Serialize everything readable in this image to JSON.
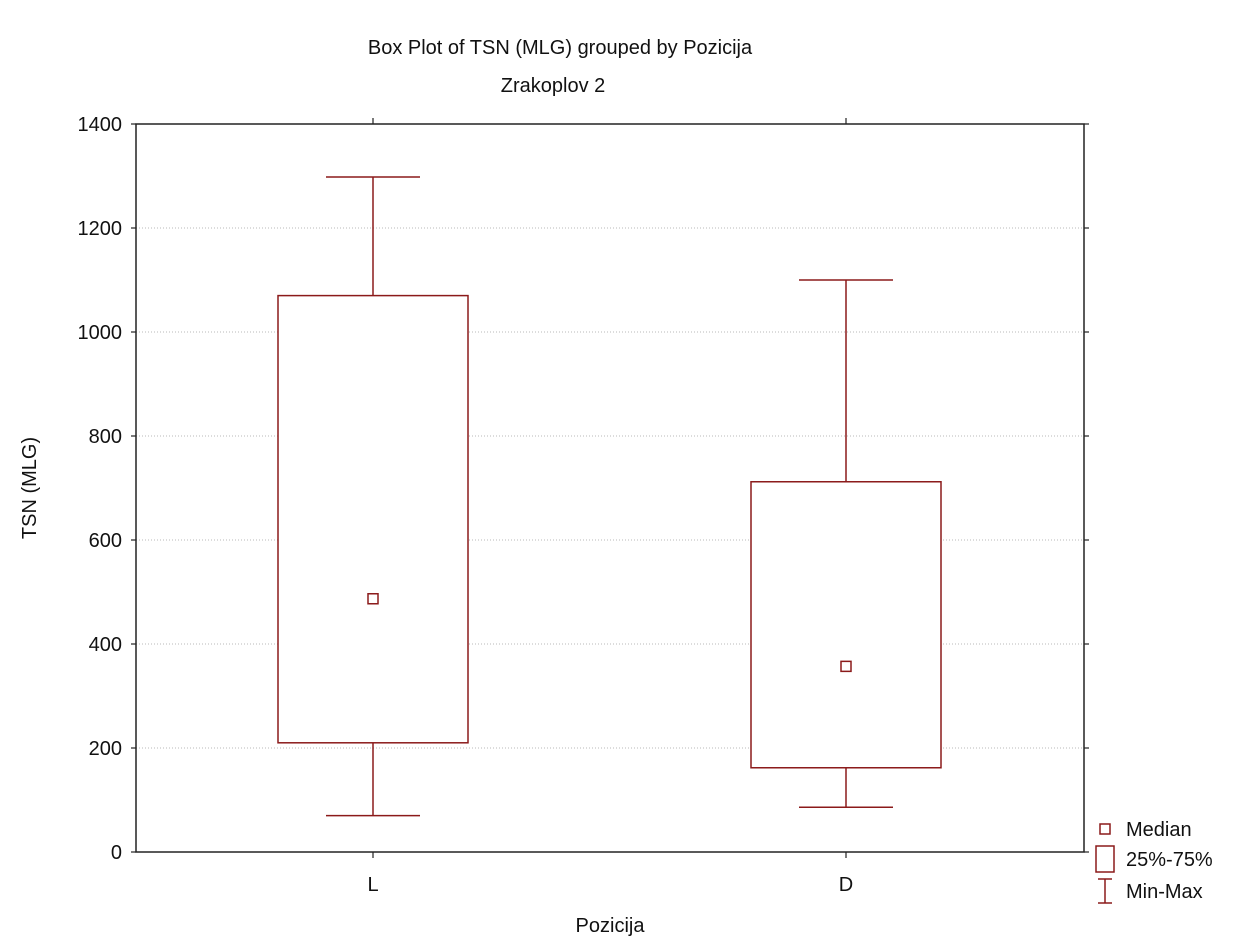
{
  "chart_data": {
    "type": "boxplot",
    "title": "Box Plot of TSN (MLG) grouped by  Pozicija",
    "subtitle": "Zrakoplov 2",
    "xlabel": "Pozicija",
    "ylabel": "TSN (MLG)",
    "categories": [
      "L",
      "D"
    ],
    "ylim": [
      0,
      1400
    ],
    "yticks": [
      0,
      200,
      400,
      600,
      800,
      1000,
      1200,
      1400
    ],
    "grid": true,
    "legend_position": "bottom-right outside",
    "colors": {
      "box": "#8b1a1a",
      "grid": "#b8b8b8",
      "axis": "#222222"
    },
    "series": [
      {
        "category": "L",
        "min": 70,
        "q1": 210,
        "median": 487,
        "q3": 1070,
        "max": 1298
      },
      {
        "category": "D",
        "min": 86,
        "q1": 162,
        "median": 357,
        "q3": 712,
        "max": 1100
      }
    ],
    "legend": [
      {
        "marker": "median-marker",
        "label": "Median"
      },
      {
        "marker": "box-marker",
        "label": "25%-75%"
      },
      {
        "marker": "whisker-marker",
        "label": "Min-Max"
      }
    ]
  }
}
